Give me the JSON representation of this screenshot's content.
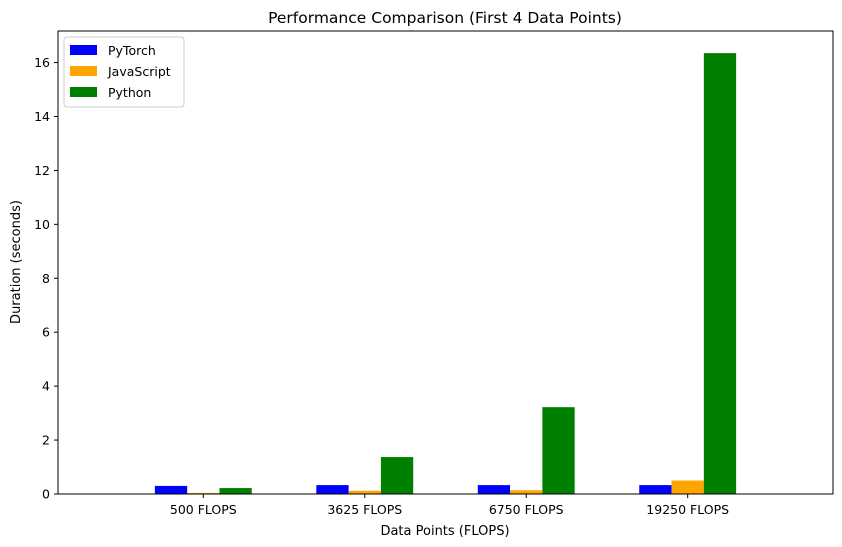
{
  "chart_data": {
    "type": "bar",
    "title": "Performance Comparison (First 4 Data Points)",
    "xlabel": "Data Points (FLOPS)",
    "ylabel": "Duration (seconds)",
    "categories": [
      "500 FLOPS",
      "3625 FLOPS",
      "6750 FLOPS",
      "19250 FLOPS"
    ],
    "series": [
      {
        "name": "PyTorch",
        "color": "#0000ff",
        "values": [
          0.3,
          0.33,
          0.33,
          0.33
        ]
      },
      {
        "name": "JavaScript",
        "color": "#ffa500",
        "values": [
          0.04,
          0.12,
          0.14,
          0.5
        ]
      },
      {
        "name": "Python",
        "color": "#008000",
        "values": [
          0.22,
          1.37,
          3.22,
          16.35
        ]
      }
    ],
    "ylim": [
      0,
      17.17
    ],
    "yticks": [
      0,
      2,
      4,
      6,
      8,
      10,
      12,
      14,
      16
    ],
    "ytick_labels": [
      "0",
      "2",
      "4",
      "6",
      "8",
      "10",
      "12",
      "14",
      "16"
    ],
    "grid": false,
    "legend_position": "top-left"
  }
}
